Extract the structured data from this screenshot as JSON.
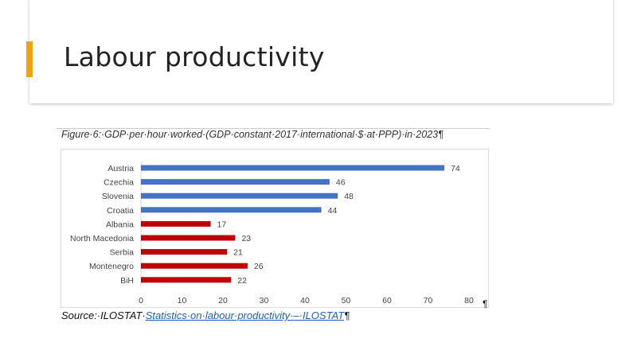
{
  "slide": {
    "title": "Labour productivity",
    "accent_color": "#f0a30a"
  },
  "figure": {
    "caption": "Figure·6:·GDP·per·hour·worked·(GDP·constant·2017·international·$·at·PPP)·in·2023¶",
    "pilcrow": "¶"
  },
  "source": {
    "prefix": "Source:·ILOSTAT·",
    "link": "Statistics·on·labour·productivity·–·ILOSTAT",
    "suffix": "¶"
  },
  "chart_data": {
    "type": "bar",
    "orientation": "horizontal",
    "categories": [
      "Austria",
      "Czechia",
      "Slovenia",
      "Croatia",
      "Albania",
      "North Macedonia",
      "Serbia",
      "Montenegro",
      "BiH"
    ],
    "values": [
      74,
      46,
      48,
      44,
      17,
      23,
      21,
      26,
      22
    ],
    "colors": [
      "#4472c4",
      "#4472c4",
      "#4472c4",
      "#4472c4",
      "#c00000",
      "#c00000",
      "#c00000",
      "#c00000",
      "#c00000"
    ],
    "xlim": [
      0,
      80
    ],
    "xticks": [
      "0",
      "10",
      "20",
      "30",
      "40",
      "50",
      "60",
      "70",
      "80"
    ],
    "grid": false,
    "title": "",
    "xlabel": "",
    "ylabel": ""
  }
}
